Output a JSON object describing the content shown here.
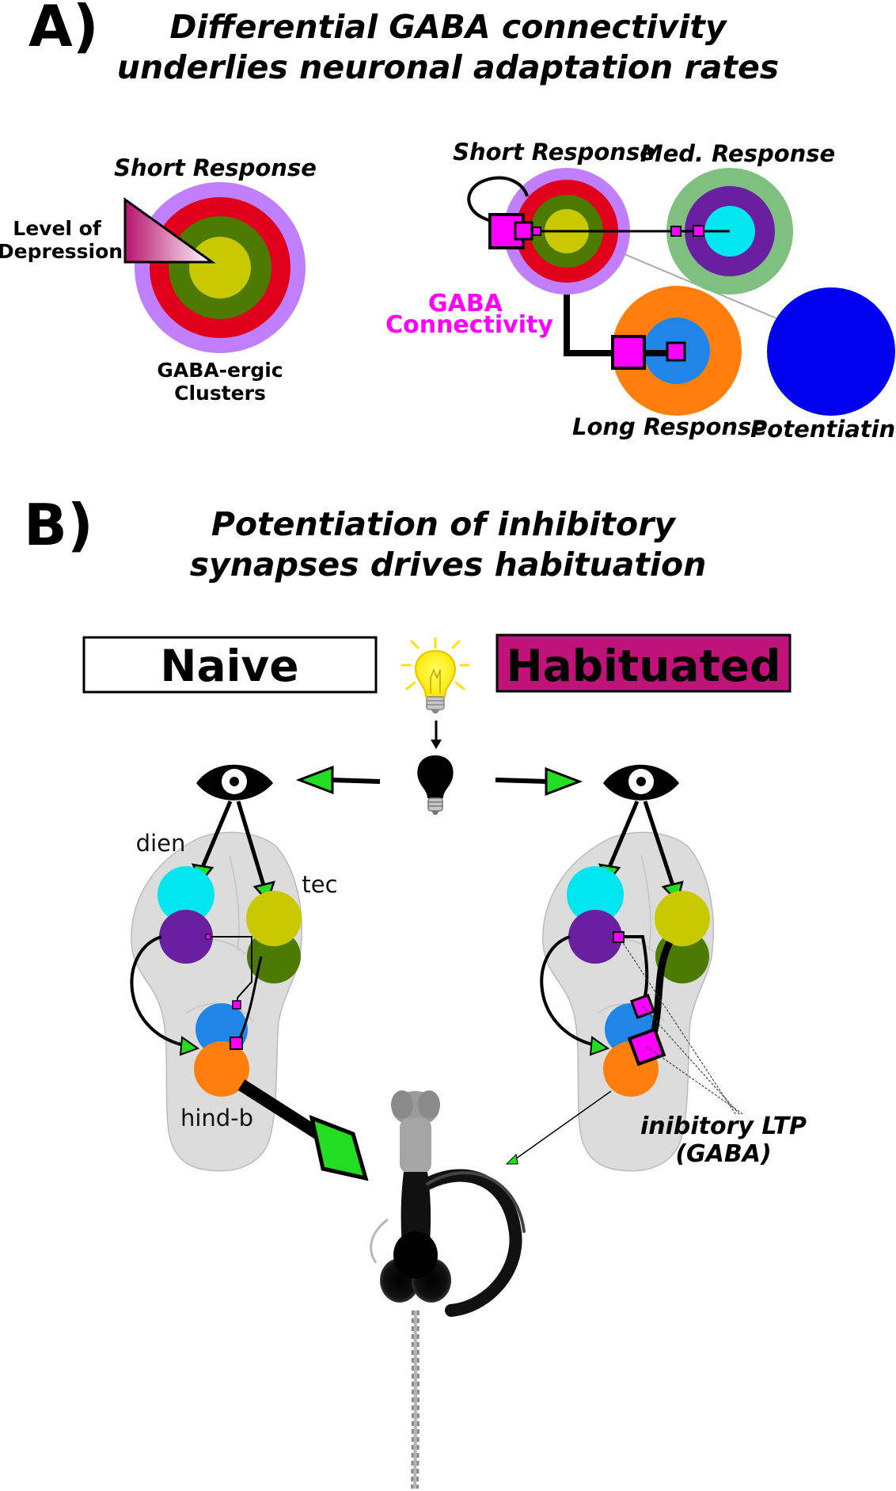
{
  "panel_a": {
    "letter": "A)",
    "title_line1": "Differential GABA connectivity",
    "title_line2": "underlies neuronal adaptation rates",
    "left": {
      "short_response": "Short Response",
      "level_line1": "Level of",
      "level_line2": "Depression",
      "clusters_line1": "GABA-ergic",
      "clusters_line2": "Clusters"
    },
    "right": {
      "short_response": "Short Response",
      "med_response": "Med. Response",
      "gaba_line1": "GABA",
      "gaba_line2": "Connectivity",
      "long_response": "Long Response",
      "potentiating": "Potentiating"
    }
  },
  "panel_b": {
    "letter": "B)",
    "title_line1": "Potentiation of inhibitory",
    "title_line2": "synapses drives habituation",
    "naive": "Naive",
    "habituated": "Habituated",
    "regions": {
      "dien": "dien",
      "tec": "tec",
      "hindb": "hind-b"
    },
    "ltp_line1": "inibitory LTP",
    "ltp_line2": "(GABA)"
  },
  "colors": {
    "lavender": "#bf7fff",
    "red": "#e0001b",
    "olive": "#4d7a00",
    "yellow": "#c9c900",
    "green_ring": "#7fbf7f",
    "purple": "#6a1fa0",
    "cyan": "#00e5ee",
    "orange": "#ff7f0e",
    "blue_inner": "#1f86e8",
    "potentiating_blue": "#0000ee",
    "magenta": "#ff00ff",
    "habituated_fill": "#c0137a",
    "arrow_green": "#22dd22",
    "brain_gray": "#dcdcdc"
  },
  "icons": [
    "light-bulb-on-icon",
    "light-bulb-off-icon",
    "eye-icon",
    "zebrafish-larva-icon"
  ]
}
